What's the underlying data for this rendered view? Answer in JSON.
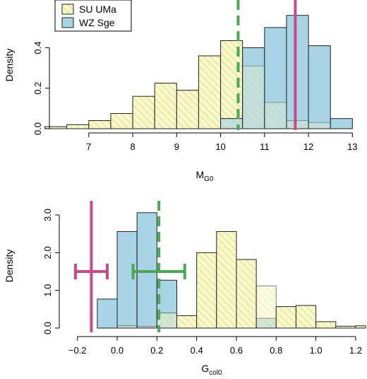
{
  "chart_data": [
    {
      "type": "histogram",
      "xlabel_main": "M",
      "xlabel_sub": "G0",
      "ylabel": "Density",
      "xlim": [
        6.2,
        13.3
      ],
      "ylim": [
        0,
        0.58
      ],
      "xticks": [
        7,
        8,
        9,
        10,
        11,
        12,
        13
      ],
      "yticks": [
        0.0,
        0.2,
        0.4
      ],
      "ytick_labels": [
        "0.0",
        "0.2",
        "0.4"
      ],
      "bin_edges": [
        6.0,
        6.5,
        7.0,
        7.5,
        8.0,
        8.5,
        9.0,
        9.5,
        10.0,
        10.5,
        11.0,
        11.5,
        12.0,
        12.5,
        13.0
      ],
      "series": [
        {
          "name": "SU UMa",
          "style": "hatched",
          "color": "#F5F5B8",
          "values": [
            0.01,
            0.02,
            0.04,
            0.075,
            0.16,
            0.225,
            0.19,
            0.36,
            0.435,
            0.31,
            0.13,
            0.04,
            0.03,
            0.0
          ]
        },
        {
          "name": "WZ Sge",
          "style": "filled",
          "color": "#A8D4E6",
          "values": [
            0.0,
            0.0,
            0.0,
            0.0,
            0.0,
            0.0,
            0.0,
            0.0,
            0.05,
            0.4,
            0.5,
            0.56,
            0.41,
            0.05
          ]
        }
      ],
      "lines": [
        {
          "x": 10.4,
          "color": "#4AA856",
          "style": "dashed"
        },
        {
          "x": 11.7,
          "color": "#C94A8A",
          "style": "solid"
        }
      ],
      "legend": {
        "position": "top-left",
        "entries": [
          "SU UMa",
          "WZ Sge"
        ]
      }
    },
    {
      "type": "histogram",
      "xlabel_main": "G",
      "xlabel_sub": "col0",
      "ylabel": "Density",
      "xlim": [
        -0.27,
        1.25
      ],
      "ylim": [
        0,
        3.3
      ],
      "xticks": [
        -0.2,
        0.0,
        0.2,
        0.4,
        0.6,
        0.8,
        1.0,
        1.2
      ],
      "xtick_labels": [
        "−0.2",
        "0.0",
        "0.2",
        "0.4",
        "0.6",
        "0.8",
        "1.0",
        "1.2"
      ],
      "yticks": [
        0.0,
        1.0,
        2.0,
        3.0
      ],
      "ytick_labels": [
        "0.0",
        "1.0",
        "2.0",
        "3.0"
      ],
      "bin_edges": [
        -0.1,
        -0.05,
        0.0,
        0.05,
        0.1,
        0.15,
        0.2,
        0.25,
        0.3,
        0.35,
        0.4,
        0.45,
        0.5,
        0.55,
        0.6,
        0.65,
        0.7,
        0.75,
        0.8,
        0.85,
        0.9,
        0.95,
        1.0,
        1.05,
        1.1,
        1.15,
        1.2,
        1.25
      ],
      "bins_su": {
        "edges": [
          0.0,
          0.1,
          0.2,
          0.3,
          0.4,
          0.5,
          0.6,
          0.7,
          0.8,
          0.9,
          1.0,
          1.1,
          1.2,
          1.25
        ],
        "values": [
          0.06,
          0.04,
          0.4,
          0.33,
          2.0,
          2.56,
          1.82,
          1.12,
          0.57,
          0.6,
          0.17,
          0.05,
          0.06
        ]
      },
      "bins_wz": {
        "edges": [
          -0.1,
          0.0,
          0.1,
          0.2,
          0.3,
          0.4,
          0.5,
          0.6,
          0.7,
          0.8,
          0.9
        ],
        "values": [
          0.77,
          2.56,
          3.06,
          1.27,
          0.0,
          0.0,
          0.0,
          0.0,
          0.26,
          0.0
        ]
      },
      "lines": [
        {
          "x": 0.21,
          "color": "#4AA856",
          "style": "dashed"
        },
        {
          "x": -0.13,
          "color": "#C94A8A",
          "style": "solid"
        }
      ],
      "errorbars": [
        {
          "center": -0.13,
          "low": -0.21,
          "high": -0.05,
          "y": 1.5,
          "color": "#C94A8A"
        },
        {
          "center": 0.21,
          "low": 0.08,
          "high": 0.34,
          "y": 1.5,
          "color": "#4AA856"
        }
      ]
    }
  ]
}
